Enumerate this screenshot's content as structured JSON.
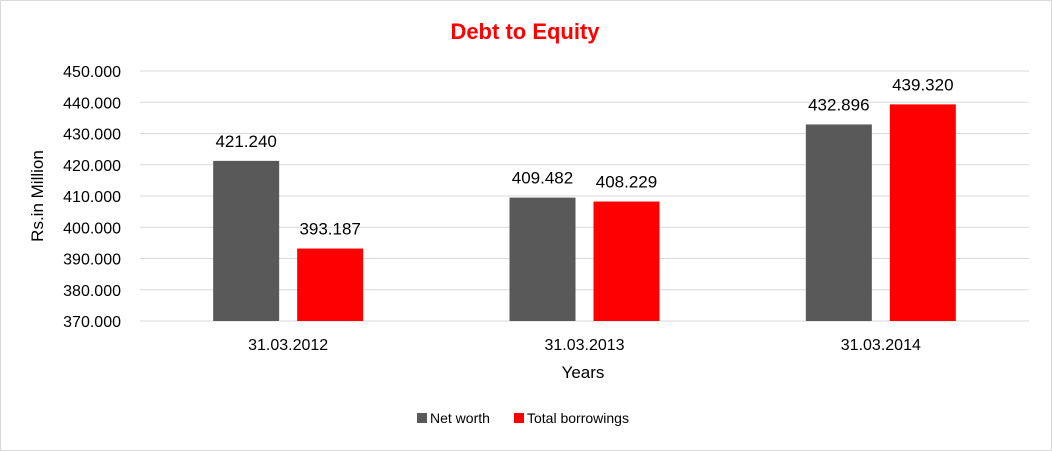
{
  "chart_data": {
    "type": "bar",
    "title": "Debt to Equity",
    "xlabel": "Years",
    "ylabel": "Rs.in Million",
    "categories": [
      "31.03.2012",
      "31.03.2013",
      "31.03.2014"
    ],
    "series": [
      {
        "name": "Net worth",
        "values": [
          421.24,
          409.482,
          432.896
        ],
        "color": "#595959"
      },
      {
        "name": "Total borrowings",
        "values": [
          393.187,
          408.229,
          439.32
        ],
        "color": "#ff0000"
      }
    ],
    "data_labels": [
      [
        "421.240",
        "409.482",
        "432.896"
      ],
      [
        "393.187",
        "408.229",
        "439.320"
      ]
    ],
    "ylim": [
      370,
      450
    ],
    "yticks": [
      370,
      380,
      390,
      400,
      410,
      420,
      430,
      440,
      450
    ],
    "ytick_labels": [
      "370.000",
      "380.000",
      "390.000",
      "400.000",
      "410.000",
      "420.000",
      "430.000",
      "440.000",
      "450.000"
    ],
    "grid": true,
    "legend_position": "bottom",
    "title_color": "#ff0000",
    "gridline_color": "#d9d9d9"
  }
}
